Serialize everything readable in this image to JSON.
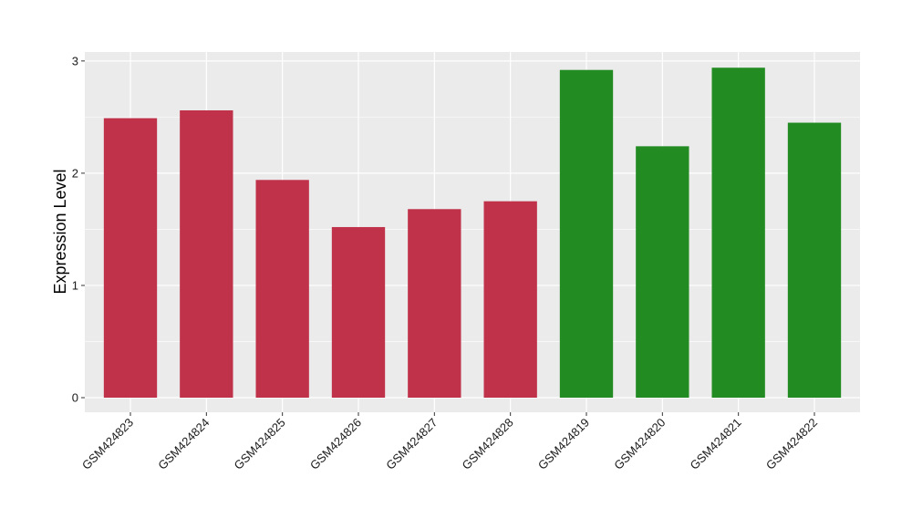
{
  "chart_data": {
    "type": "bar",
    "title": "",
    "xlabel": "",
    "ylabel": "Expression Level",
    "ylim": [
      -0.13,
      3.08
    ],
    "yticks": [
      0,
      1,
      2,
      3
    ],
    "grid": true,
    "legend": "none",
    "panel_background": "#ebebeb",
    "grid_color": "#ffffff",
    "categories": [
      "GSM424823",
      "GSM424824",
      "GSM424825",
      "GSM424826",
      "GSM424827",
      "GSM424828",
      "GSM424819",
      "GSM424820",
      "GSM424821",
      "GSM424822"
    ],
    "values": [
      2.49,
      2.56,
      1.94,
      1.52,
      1.68,
      1.75,
      2.92,
      2.24,
      2.94,
      2.45
    ],
    "bar_colors": [
      "#c0314a",
      "#c0314a",
      "#c0314a",
      "#c0314a",
      "#c0314a",
      "#c0314a",
      "#228b22",
      "#228b22",
      "#228b22",
      "#228b22"
    ]
  }
}
